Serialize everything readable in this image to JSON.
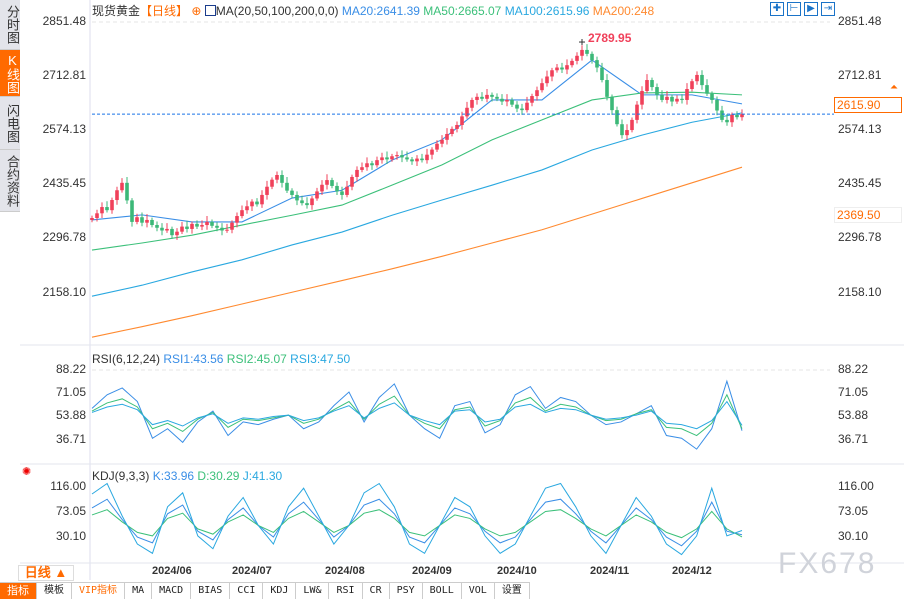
{
  "sidebar": {
    "items": [
      {
        "label": "分时图"
      },
      {
        "label": "K线图",
        "active": true
      },
      {
        "label": "闪电图"
      },
      {
        "label": "合约资料"
      }
    ]
  },
  "header": {
    "title": "现货黄金",
    "period_tag": "【日线】",
    "ma_label": "MA(20,50,100,200,0,0)",
    "ma20": "MA20:2641.39",
    "ma50": "MA50:2665.07",
    "ma100": "MA100:2615.96",
    "ma200": "MA200:248"
  },
  "toolbar_icons": [
    "crosshair-icon",
    "zoom-range-icon",
    "play-icon",
    "jump-latest-icon"
  ],
  "price_axis": [
    "2851.48",
    "2712.81",
    "2574.13",
    "2435.45",
    "2296.78",
    "2158.10"
  ],
  "current_price": "2615.90",
  "marker_price": "2369.50",
  "high_label": "2789.95",
  "rsi": {
    "label": "RSI(6,12,24)",
    "rsi1": "RSI1:43.56",
    "rsi2": "RSI2:45.07",
    "rsi3": "RSI3:47.50",
    "axis": [
      "88.22",
      "71.05",
      "53.88",
      "36.71"
    ]
  },
  "kdj": {
    "label": "KDJ(9,3,3)",
    "k": "K:33.96",
    "d": "D:30.29",
    "j": "J:41.30",
    "axis": [
      "116.00",
      "73.05",
      "30.10"
    ]
  },
  "dates": [
    "2024/06",
    "2024/07",
    "2024/08",
    "2024/09",
    "2024/10",
    "2024/11",
    "2024/12"
  ],
  "period_button": "日线 ▲",
  "bottom_toolbar": [
    "指标",
    "模板",
    "VIP指标",
    "MA",
    "MACD",
    "BIAS",
    "CCI",
    "KDJ",
    "LW&",
    "RSI",
    "CR",
    "PSY",
    "BOLL",
    "VOL",
    "设置"
  ],
  "watermark": "FX678",
  "colors": {
    "up": "#f0405a",
    "down": "#3cb878",
    "ma20": "#3a8ee6",
    "ma50": "#3cc07a",
    "ma100": "#2aa8e0",
    "ma200": "#ff8a30",
    "accent": "#ff6a00"
  },
  "chart_data": {
    "type": "candlestick",
    "ylim": [
      2158.1,
      2851.48
    ],
    "closes": [
      2350,
      2362,
      2378,
      2370,
      2396,
      2421,
      2440,
      2395,
      2340,
      2352,
      2338,
      2345,
      2332,
      2325,
      2318,
      2322,
      2306,
      2315,
      2328,
      2322,
      2335,
      2328,
      2332,
      2340,
      2330,
      2325,
      2318,
      2320,
      2338,
      2355,
      2370,
      2380,
      2392,
      2385,
      2409,
      2430,
      2448,
      2460,
      2440,
      2420,
      2409,
      2395,
      2388,
      2383,
      2400,
      2418,
      2435,
      2447,
      2432,
      2418,
      2409,
      2430,
      2455,
      2473,
      2480,
      2490,
      2485,
      2498,
      2505,
      2500,
      2508,
      2511,
      2505,
      2500,
      2495,
      2502,
      2498,
      2512,
      2525,
      2540,
      2550,
      2565,
      2578,
      2588,
      2610,
      2632,
      2652,
      2660,
      2655,
      2665,
      2660,
      2655,
      2648,
      2652,
      2640,
      2630,
      2626,
      2645,
      2662,
      2677,
      2695,
      2712,
      2728,
      2735,
      2730,
      2741,
      2752,
      2765,
      2780,
      2770,
      2754,
      2735,
      2703,
      2660,
      2626,
      2590,
      2562,
      2575,
      2601,
      2640,
      2675,
      2703,
      2685,
      2665,
      2652,
      2660,
      2648,
      2655,
      2652,
      2680,
      2700,
      2716,
      2690,
      2668,
      2652,
      2625,
      2601,
      2595,
      2614,
      2608,
      2616
    ],
    "ma_every_10": {
      "MA20": [
        2345,
        2358,
        2340,
        2340,
        2401,
        2421,
        2498,
        2550,
        2652,
        2652,
        2754,
        2665,
        2665,
        2642
      ],
      "MA50": [
        2268,
        2286,
        2306,
        2332,
        2357,
        2383,
        2434,
        2486,
        2550,
        2601,
        2652,
        2670,
        2672,
        2665
      ],
      "MA100": [
        2150,
        2178,
        2212,
        2243,
        2281,
        2314,
        2357,
        2396,
        2434,
        2473,
        2524,
        2562,
        2595,
        2619
      ],
      "MA200": [
        2045,
        2072,
        2100,
        2130,
        2160,
        2190,
        2220,
        2252,
        2286,
        2320,
        2360,
        2400,
        2440,
        2480
      ]
    },
    "rsi_ylim": [
      36.71,
      88.22
    ],
    "RSI1": [
      60,
      70,
      75,
      65,
      38,
      45,
      35,
      50,
      58,
      40,
      50,
      48,
      52,
      55,
      45,
      50,
      62,
      72,
      50,
      68,
      78,
      55,
      45,
      38,
      62,
      65,
      42,
      48,
      70,
      76,
      60,
      68,
      65,
      55,
      48,
      50,
      56,
      62,
      40,
      38,
      30,
      45,
      80,
      43.56
    ],
    "RSI2": [
      58,
      64,
      67,
      61,
      45,
      49,
      43,
      52,
      57,
      46,
      52,
      51,
      53,
      55,
      49,
      52,
      59,
      65,
      52,
      63,
      69,
      55,
      49,
      45,
      59,
      61,
      47,
      51,
      64,
      68,
      58,
      63,
      61,
      55,
      51,
      52,
      56,
      59,
      46,
      45,
      40,
      49,
      70,
      45.07
    ],
    "RSI3": [
      57,
      61,
      63,
      59,
      48,
      51,
      47,
      53,
      56,
      49,
      53,
      52,
      54,
      55,
      51,
      53,
      58,
      62,
      53,
      60,
      64,
      55,
      51,
      48,
      58,
      59,
      50,
      52,
      61,
      63,
      57,
      60,
      59,
      55,
      52,
      53,
      55,
      58,
      49,
      48,
      45,
      51,
      65,
      47.5
    ],
    "kdj_ylim": [
      30.1,
      116.0
    ],
    "K": [
      80,
      95,
      60,
      30,
      20,
      70,
      85,
      40,
      25,
      60,
      80,
      50,
      30,
      70,
      90,
      60,
      30,
      50,
      85,
      95,
      70,
      30,
      20,
      50,
      80,
      70,
      40,
      20,
      30,
      60,
      90,
      95,
      70,
      40,
      20,
      50,
      80,
      60,
      30,
      15,
      40,
      90,
      40,
      33.96
    ],
    "D": [
      68,
      77,
      56,
      38,
      32,
      62,
      71,
      44,
      35,
      56,
      68,
      50,
      38,
      62,
      74,
      56,
      38,
      50,
      71,
      77,
      62,
      38,
      32,
      50,
      68,
      62,
      44,
      32,
      38,
      56,
      74,
      77,
      62,
      44,
      32,
      50,
      68,
      56,
      38,
      29,
      44,
      74,
      44,
      30.29
    ],
    "J": [
      104,
      122,
      66,
      18,
      2,
      82,
      106,
      32,
      10,
      66,
      98,
      50,
      18,
      82,
      114,
      66,
      18,
      50,
      106,
      122,
      82,
      18,
      2,
      50,
      98,
      82,
      32,
      2,
      18,
      66,
      114,
      122,
      82,
      32,
      2,
      50,
      98,
      66,
      18,
      0,
      32,
      114,
      32,
      41.3
    ]
  }
}
